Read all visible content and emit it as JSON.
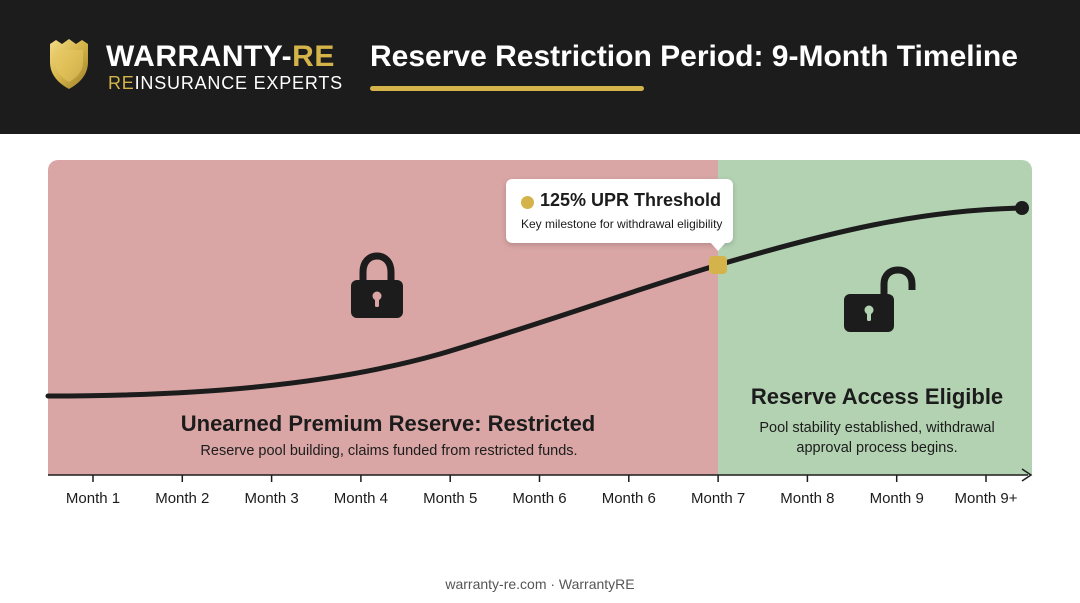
{
  "brand": {
    "name_main": "WARRANTY-",
    "name_accent": "RE",
    "tagline_accent": "RE",
    "tagline_main": "INSURANCE EXPERTS"
  },
  "title": "Reserve Restriction Period: 9-Month Timeline",
  "restricted_zone": {
    "title": "Unearned Premium Reserve: Restricted",
    "description": "Reserve pool building, claims funded from restricted funds.",
    "icon": "lock-icon",
    "color": "#d9a6a5"
  },
  "eligible_zone": {
    "title": "Reserve Access Eligible",
    "description": "Pool stability established, withdrawal approval process begins.",
    "icon": "unlock-icon",
    "color": "#b3d2b2"
  },
  "milestone": {
    "title": "125% UPR Threshold",
    "subtitle": "Key milestone for withdrawal eligibility",
    "color": "#d4b44a"
  },
  "timeline_ticks": [
    "Month 1",
    "Month 2",
    "Month 3",
    "Month 4",
    "Month 5",
    "Month 6",
    "Month 6",
    "Month 7",
    "Month 8",
    "Month 9",
    "Month 9+"
  ],
  "footer": "warranty-re.com · WarrantyRE",
  "colors": {
    "header_bg": "#1c1c1c",
    "accent_gold": "#d4b44a",
    "curve": "#1c1c1c"
  }
}
